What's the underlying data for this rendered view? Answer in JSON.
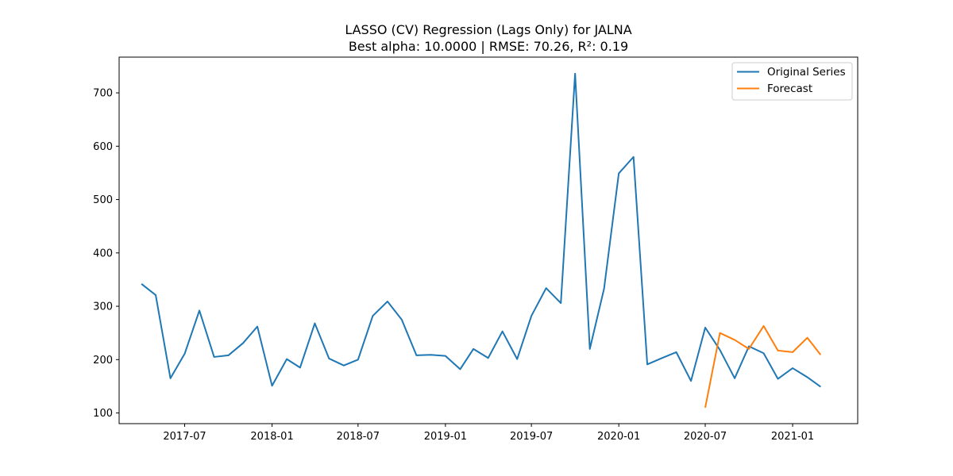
{
  "chart_data": {
    "type": "line",
    "title": "LASSO (CV) Regression (Lags Only) for JALNA",
    "subtitle": "Best alpha: 10.0000 | RMSE: 70.26, R²: 0.19",
    "xlabel": "",
    "ylabel": "",
    "xlim": [
      "2017-02-13",
      "2021-05-18"
    ],
    "ylim": [
      80,
      767
    ],
    "x_ticks": [
      "2017-07",
      "2018-01",
      "2018-07",
      "2019-01",
      "2019-07",
      "2020-01",
      "2020-07",
      "2021-01"
    ],
    "y_ticks": [
      100,
      200,
      300,
      400,
      500,
      600,
      700
    ],
    "grid": false,
    "legend_position": "top-right",
    "colors": {
      "original": "#1f77b4",
      "forecast": "#ff7f0e"
    },
    "series": [
      {
        "name": "Original Series",
        "x": [
          "2017-04-01",
          "2017-05-01",
          "2017-06-01",
          "2017-07-01",
          "2017-08-01",
          "2017-09-01",
          "2017-10-01",
          "2017-11-01",
          "2017-12-01",
          "2018-01-01",
          "2018-02-01",
          "2018-03-01",
          "2018-04-01",
          "2018-05-01",
          "2018-06-01",
          "2018-07-01",
          "2018-08-01",
          "2018-09-01",
          "2018-10-01",
          "2018-11-01",
          "2018-12-01",
          "2019-01-01",
          "2019-02-01",
          "2019-03-01",
          "2019-04-01",
          "2019-05-01",
          "2019-06-01",
          "2019-07-01",
          "2019-08-01",
          "2019-09-01",
          "2019-10-01",
          "2019-11-01",
          "2019-12-01",
          "2020-01-01",
          "2020-02-01",
          "2020-03-01",
          "2020-04-01",
          "2020-05-01",
          "2020-06-01",
          "2020-07-01",
          "2020-08-01",
          "2020-09-01",
          "2020-10-01",
          "2020-11-01",
          "2020-12-01",
          "2021-01-01",
          "2021-02-01",
          "2021-03-01"
        ],
        "values": [
          342,
          321,
          165,
          211,
          292,
          205,
          208,
          231,
          262,
          151,
          201,
          185,
          268,
          202,
          189,
          200,
          282,
          309,
          275,
          208,
          209,
          207,
          182,
          220,
          203,
          253,
          201,
          282,
          334,
          306,
          736,
          220,
          333,
          549,
          580,
          191,
          203,
          214,
          160,
          260,
          218,
          165,
          225,
          212,
          164,
          184,
          167,
          149
        ]
      },
      {
        "name": "Forecast",
        "x": [
          "2020-07-01",
          "2020-08-01",
          "2020-09-01",
          "2020-10-01",
          "2020-11-01",
          "2020-12-01",
          "2021-01-01",
          "2021-02-01",
          "2021-03-01"
        ],
        "values": [
          110,
          250,
          237,
          220,
          263,
          217,
          214,
          241,
          209
        ]
      }
    ]
  }
}
